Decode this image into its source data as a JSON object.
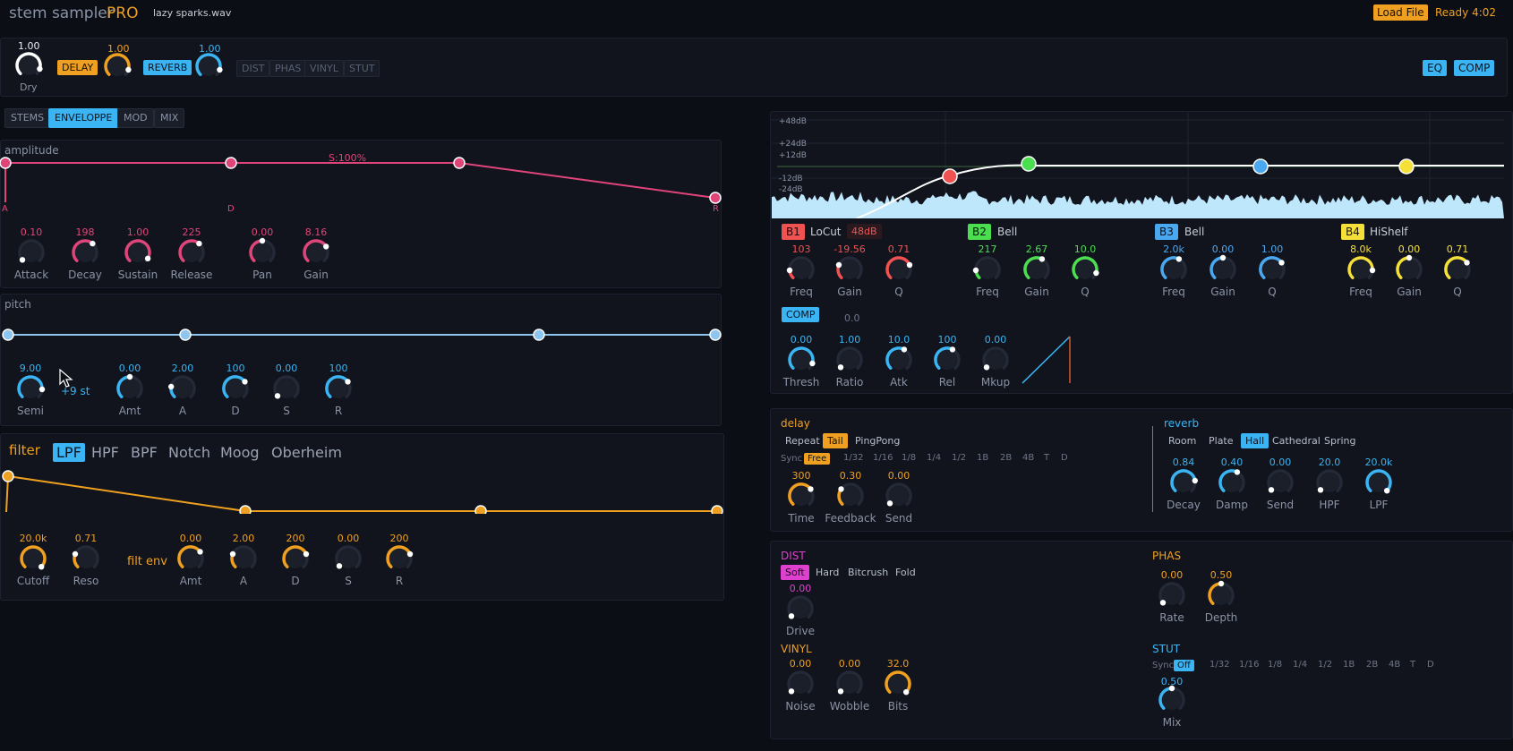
{
  "header": {
    "app_name": "stem sampler",
    "app_edition": "PRO",
    "file_name": "lazy sparks.wav",
    "load_button": "Load File",
    "status": "Ready 4:02"
  },
  "fx_bar": {
    "dry": {
      "value": "1.00",
      "label": "Dry"
    },
    "delay": {
      "label": "DELAY",
      "value": "1.00"
    },
    "reverb": {
      "label": "REVERB",
      "value": "1.00"
    },
    "inactive": [
      "DIST",
      "PHAS",
      "VINYL",
      "STUT"
    ],
    "eq_button": "EQ",
    "comp_button": "COMP"
  },
  "tabs": [
    "STEMS",
    "ENVELOPPE",
    "MOD",
    "MIX"
  ],
  "active_tab": "ENVELOPPE",
  "amplitude": {
    "title": "amplitude",
    "sustain_label": "S:100%",
    "markers": [
      "A",
      "D",
      "R"
    ],
    "knobs": [
      {
        "label": "Attack",
        "value": "0.10"
      },
      {
        "label": "Decay",
        "value": "198"
      },
      {
        "label": "Sustain",
        "value": "1.00"
      },
      {
        "label": "Release",
        "value": "225"
      },
      {
        "label": "Pan",
        "value": "0.00"
      },
      {
        "label": "Gain",
        "value": "8.16"
      }
    ]
  },
  "pitch": {
    "title": "pitch",
    "semi_unit": "+9 st",
    "knobs": [
      {
        "label": "Semi",
        "value": "9.00"
      },
      {
        "label": "Amt",
        "value": "0.00"
      },
      {
        "label": "A",
        "value": "2.00"
      },
      {
        "label": "D",
        "value": "100"
      },
      {
        "label": "S",
        "value": "0.00"
      },
      {
        "label": "R",
        "value": "100"
      }
    ]
  },
  "filter": {
    "title": "filter",
    "types": [
      "LPF",
      "HPF",
      "BPF",
      "Notch",
      "Moog",
      "Oberheim"
    ],
    "active_type": "LPF",
    "env_label": "filt env",
    "knobs": [
      {
        "label": "Cutoff",
        "value": "20.0k"
      },
      {
        "label": "Reso",
        "value": "0.71"
      },
      {
        "label": "Amt",
        "value": "0.00"
      },
      {
        "label": "A",
        "value": "2.00"
      },
      {
        "label": "D",
        "value": "200"
      },
      {
        "label": "S",
        "value": "0.00"
      },
      {
        "label": "R",
        "value": "200"
      }
    ]
  },
  "eq": {
    "db_labels": [
      "+48dB",
      "+24dB",
      "+12dB",
      "-12dB",
      "-24dB"
    ],
    "bands": [
      {
        "id": "B1",
        "type": "LoCut",
        "slope": "48dB",
        "color": "#f05252",
        "knobs": [
          {
            "label": "Freq",
            "value": "103"
          },
          {
            "label": "Gain",
            "value": "-19.56"
          },
          {
            "label": "Q",
            "value": "0.71"
          }
        ]
      },
      {
        "id": "B2",
        "type": "Bell",
        "color": "#4ade50",
        "knobs": [
          {
            "label": "Freq",
            "value": "217"
          },
          {
            "label": "Gain",
            "value": "2.67"
          },
          {
            "label": "Q",
            "value": "10.0"
          }
        ]
      },
      {
        "id": "B3",
        "type": "Bell",
        "color": "#4aa8f0",
        "knobs": [
          {
            "label": "Freq",
            "value": "2.0k"
          },
          {
            "label": "Gain",
            "value": "0.00"
          },
          {
            "label": "Q",
            "value": "1.00"
          }
        ]
      },
      {
        "id": "B4",
        "type": "HiShelf",
        "color": "#f5e03a",
        "knobs": [
          {
            "label": "Freq",
            "value": "8.0k"
          },
          {
            "label": "Gain",
            "value": "0.00"
          },
          {
            "label": "Q",
            "value": "0.71"
          }
        ]
      }
    ]
  },
  "comp": {
    "label": "COMP",
    "gr": "0.0",
    "knobs": [
      {
        "label": "Thresh",
        "value": "0.00"
      },
      {
        "label": "Ratio",
        "value": "1.00"
      },
      {
        "label": "Atk",
        "value": "10.0"
      },
      {
        "label": "Rel",
        "value": "100"
      },
      {
        "label": "Mkup",
        "value": "0.00"
      }
    ]
  },
  "delay": {
    "title": "delay",
    "modes": [
      "Repeat",
      "Tail",
      "PingPong"
    ],
    "active_mode": "Tail",
    "sync_label": "Sync",
    "sync": [
      "Free",
      "1/32",
      "1/16",
      "1/8",
      "1/4",
      "1/2",
      "1B",
      "2B",
      "4B",
      "T",
      "D"
    ],
    "active_sync": "Free",
    "knobs": [
      {
        "label": "Time",
        "value": "300"
      },
      {
        "label": "Feedback",
        "value": "0.30"
      },
      {
        "label": "Send",
        "value": "0.00"
      }
    ]
  },
  "reverb": {
    "title": "reverb",
    "types": [
      "Room",
      "Plate",
      "Hall",
      "Cathedral",
      "Spring"
    ],
    "active_type": "Hall",
    "knobs": [
      {
        "label": "Decay",
        "value": "0.84"
      },
      {
        "label": "Damp",
        "value": "0.40"
      },
      {
        "label": "Send",
        "value": "0.00"
      },
      {
        "label": "HPF",
        "value": "20.0"
      },
      {
        "label": "LPF",
        "value": "20.0k"
      }
    ]
  },
  "dist": {
    "title": "DIST",
    "modes": [
      "Soft",
      "Hard",
      "Bitcrush",
      "Fold"
    ],
    "active_mode": "Soft",
    "knob": {
      "label": "Drive",
      "value": "0.00"
    }
  },
  "vinyl": {
    "title": "VINYL",
    "knobs": [
      {
        "label": "Noise",
        "value": "0.00"
      },
      {
        "label": "Wobble",
        "value": "0.00"
      },
      {
        "label": "Bits",
        "value": "32.0"
      }
    ]
  },
  "phas": {
    "title": "PHAS",
    "knobs": [
      {
        "label": "Rate",
        "value": "0.00"
      },
      {
        "label": "Depth",
        "value": "0.50"
      }
    ]
  },
  "stut": {
    "title": "STUT",
    "sync_label": "Sync",
    "sync": [
      "Off",
      "1/32",
      "1/16",
      "1/8",
      "1/4",
      "1/2",
      "1B",
      "2B",
      "4B",
      "T",
      "D"
    ],
    "active_sync": "Off",
    "knob": {
      "label": "Mix",
      "value": "0.50"
    }
  }
}
